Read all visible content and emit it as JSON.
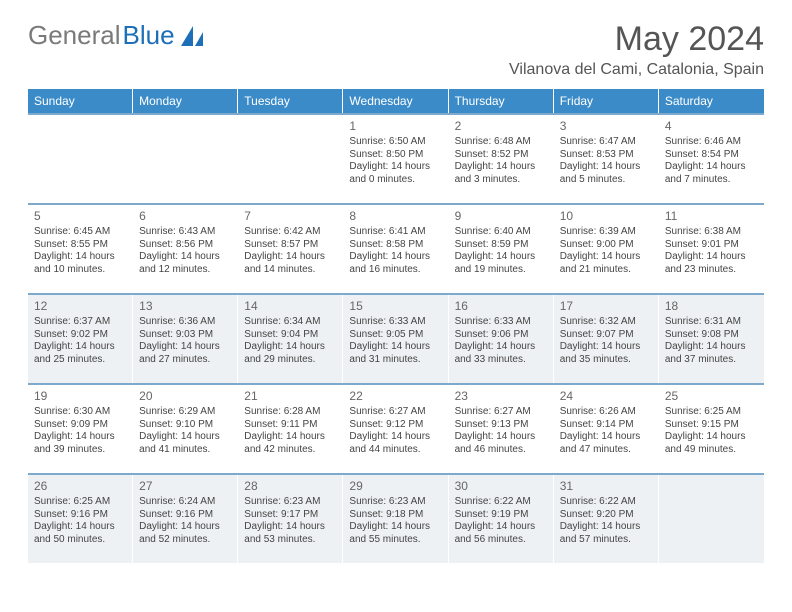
{
  "logo": {
    "text_gray": "General",
    "text_blue": "Blue"
  },
  "title": "May 2024",
  "location": "Vilanova del Cami, Catalonia, Spain",
  "colors": {
    "header_bg": "#3b8bc9",
    "header_text": "#ffffff",
    "week_border": "#7da9cc",
    "shaded_bg": "#eef1f3",
    "plain_bg": "#ffffff",
    "text": "#444444",
    "logo_blue": "#1d6fb8",
    "logo_gray": "#7a7a7a"
  },
  "weekdays": [
    "Sunday",
    "Monday",
    "Tuesday",
    "Wednesday",
    "Thursday",
    "Friday",
    "Saturday"
  ],
  "weeks": [
    {
      "shaded": false,
      "days": [
        {
          "blank": true
        },
        {
          "blank": true
        },
        {
          "blank": true
        },
        {
          "num": "1",
          "sunrise": "Sunrise: 6:50 AM",
          "sunset": "Sunset: 8:50 PM",
          "daylight": "Daylight: 14 hours and 0 minutes."
        },
        {
          "num": "2",
          "sunrise": "Sunrise: 6:48 AM",
          "sunset": "Sunset: 8:52 PM",
          "daylight": "Daylight: 14 hours and 3 minutes."
        },
        {
          "num": "3",
          "sunrise": "Sunrise: 6:47 AM",
          "sunset": "Sunset: 8:53 PM",
          "daylight": "Daylight: 14 hours and 5 minutes."
        },
        {
          "num": "4",
          "sunrise": "Sunrise: 6:46 AM",
          "sunset": "Sunset: 8:54 PM",
          "daylight": "Daylight: 14 hours and 7 minutes."
        }
      ]
    },
    {
      "shaded": false,
      "days": [
        {
          "num": "5",
          "sunrise": "Sunrise: 6:45 AM",
          "sunset": "Sunset: 8:55 PM",
          "daylight": "Daylight: 14 hours and 10 minutes."
        },
        {
          "num": "6",
          "sunrise": "Sunrise: 6:43 AM",
          "sunset": "Sunset: 8:56 PM",
          "daylight": "Daylight: 14 hours and 12 minutes."
        },
        {
          "num": "7",
          "sunrise": "Sunrise: 6:42 AM",
          "sunset": "Sunset: 8:57 PM",
          "daylight": "Daylight: 14 hours and 14 minutes."
        },
        {
          "num": "8",
          "sunrise": "Sunrise: 6:41 AM",
          "sunset": "Sunset: 8:58 PM",
          "daylight": "Daylight: 14 hours and 16 minutes."
        },
        {
          "num": "9",
          "sunrise": "Sunrise: 6:40 AM",
          "sunset": "Sunset: 8:59 PM",
          "daylight": "Daylight: 14 hours and 19 minutes."
        },
        {
          "num": "10",
          "sunrise": "Sunrise: 6:39 AM",
          "sunset": "Sunset: 9:00 PM",
          "daylight": "Daylight: 14 hours and 21 minutes."
        },
        {
          "num": "11",
          "sunrise": "Sunrise: 6:38 AM",
          "sunset": "Sunset: 9:01 PM",
          "daylight": "Daylight: 14 hours and 23 minutes."
        }
      ]
    },
    {
      "shaded": true,
      "days": [
        {
          "num": "12",
          "sunrise": "Sunrise: 6:37 AM",
          "sunset": "Sunset: 9:02 PM",
          "daylight": "Daylight: 14 hours and 25 minutes."
        },
        {
          "num": "13",
          "sunrise": "Sunrise: 6:36 AM",
          "sunset": "Sunset: 9:03 PM",
          "daylight": "Daylight: 14 hours and 27 minutes."
        },
        {
          "num": "14",
          "sunrise": "Sunrise: 6:34 AM",
          "sunset": "Sunset: 9:04 PM",
          "daylight": "Daylight: 14 hours and 29 minutes."
        },
        {
          "num": "15",
          "sunrise": "Sunrise: 6:33 AM",
          "sunset": "Sunset: 9:05 PM",
          "daylight": "Daylight: 14 hours and 31 minutes."
        },
        {
          "num": "16",
          "sunrise": "Sunrise: 6:33 AM",
          "sunset": "Sunset: 9:06 PM",
          "daylight": "Daylight: 14 hours and 33 minutes."
        },
        {
          "num": "17",
          "sunrise": "Sunrise: 6:32 AM",
          "sunset": "Sunset: 9:07 PM",
          "daylight": "Daylight: 14 hours and 35 minutes."
        },
        {
          "num": "18",
          "sunrise": "Sunrise: 6:31 AM",
          "sunset": "Sunset: 9:08 PM",
          "daylight": "Daylight: 14 hours and 37 minutes."
        }
      ]
    },
    {
      "shaded": false,
      "days": [
        {
          "num": "19",
          "sunrise": "Sunrise: 6:30 AM",
          "sunset": "Sunset: 9:09 PM",
          "daylight": "Daylight: 14 hours and 39 minutes."
        },
        {
          "num": "20",
          "sunrise": "Sunrise: 6:29 AM",
          "sunset": "Sunset: 9:10 PM",
          "daylight": "Daylight: 14 hours and 41 minutes."
        },
        {
          "num": "21",
          "sunrise": "Sunrise: 6:28 AM",
          "sunset": "Sunset: 9:11 PM",
          "daylight": "Daylight: 14 hours and 42 minutes."
        },
        {
          "num": "22",
          "sunrise": "Sunrise: 6:27 AM",
          "sunset": "Sunset: 9:12 PM",
          "daylight": "Daylight: 14 hours and 44 minutes."
        },
        {
          "num": "23",
          "sunrise": "Sunrise: 6:27 AM",
          "sunset": "Sunset: 9:13 PM",
          "daylight": "Daylight: 14 hours and 46 minutes."
        },
        {
          "num": "24",
          "sunrise": "Sunrise: 6:26 AM",
          "sunset": "Sunset: 9:14 PM",
          "daylight": "Daylight: 14 hours and 47 minutes."
        },
        {
          "num": "25",
          "sunrise": "Sunrise: 6:25 AM",
          "sunset": "Sunset: 9:15 PM",
          "daylight": "Daylight: 14 hours and 49 minutes."
        }
      ]
    },
    {
      "shaded": true,
      "days": [
        {
          "num": "26",
          "sunrise": "Sunrise: 6:25 AM",
          "sunset": "Sunset: 9:16 PM",
          "daylight": "Daylight: 14 hours and 50 minutes."
        },
        {
          "num": "27",
          "sunrise": "Sunrise: 6:24 AM",
          "sunset": "Sunset: 9:16 PM",
          "daylight": "Daylight: 14 hours and 52 minutes."
        },
        {
          "num": "28",
          "sunrise": "Sunrise: 6:23 AM",
          "sunset": "Sunset: 9:17 PM",
          "daylight": "Daylight: 14 hours and 53 minutes."
        },
        {
          "num": "29",
          "sunrise": "Sunrise: 6:23 AM",
          "sunset": "Sunset: 9:18 PM",
          "daylight": "Daylight: 14 hours and 55 minutes."
        },
        {
          "num": "30",
          "sunrise": "Sunrise: 6:22 AM",
          "sunset": "Sunset: 9:19 PM",
          "daylight": "Daylight: 14 hours and 56 minutes."
        },
        {
          "num": "31",
          "sunrise": "Sunrise: 6:22 AM",
          "sunset": "Sunset: 9:20 PM",
          "daylight": "Daylight: 14 hours and 57 minutes."
        },
        {
          "blank": true
        }
      ]
    }
  ]
}
